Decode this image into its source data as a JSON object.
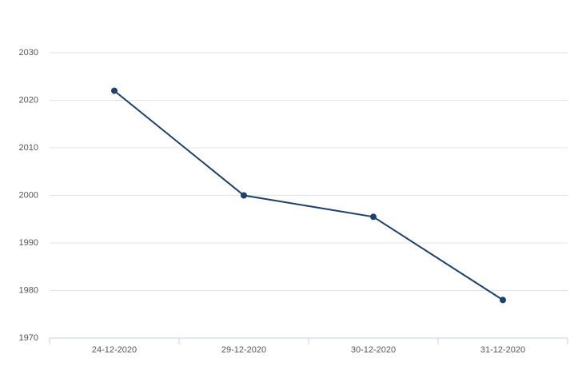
{
  "chart_data": {
    "type": "line",
    "categories": [
      "24-12-2020",
      "29-12-2020",
      "30-12-2020",
      "31-12-2020"
    ],
    "values": [
      2022,
      2000,
      1995.5,
      1978
    ],
    "color": "#1d4168",
    "ylim": [
      1970,
      2030
    ],
    "yticks": [
      1970,
      1980,
      1990,
      2000,
      2010,
      2020,
      2030
    ],
    "grid": true
  }
}
